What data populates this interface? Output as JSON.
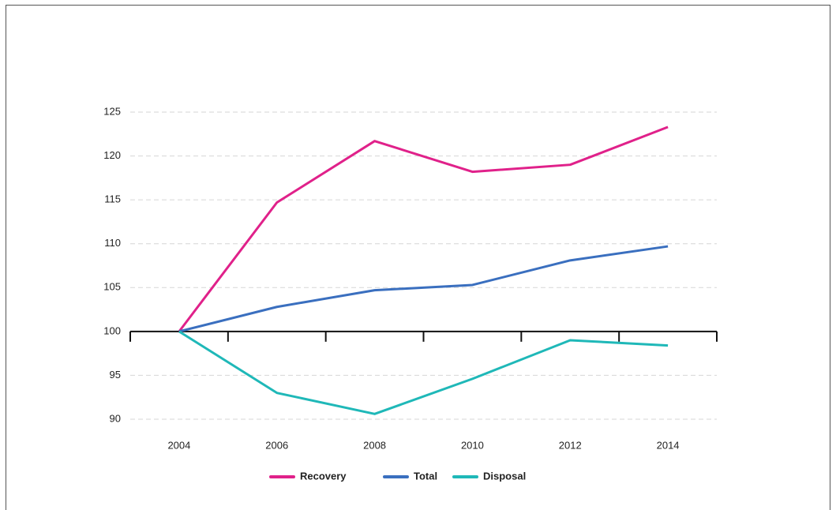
{
  "chart_data": {
    "type": "line",
    "categories": [
      "2004",
      "2006",
      "2008",
      "2010",
      "2012",
      "2014"
    ],
    "series": [
      {
        "name": "Recovery",
        "color": "#e0218a",
        "values": [
          100,
          114.7,
          121.7,
          118.2,
          119.0,
          123.3
        ]
      },
      {
        "name": "Total",
        "color": "#3a6fbf",
        "values": [
          100,
          102.8,
          104.7,
          105.3,
          108.1,
          109.7
        ]
      },
      {
        "name": "Disposal",
        "color": "#1fb8b8",
        "values": [
          100,
          93.0,
          90.6,
          94.6,
          99.0,
          98.4
        ]
      }
    ],
    "ylim": [
      90,
      125
    ],
    "yticks": [
      90,
      95,
      100,
      105,
      110,
      115,
      120,
      125
    ],
    "xaxis_crosses": 100,
    "grid": true,
    "legend": "bottom"
  }
}
